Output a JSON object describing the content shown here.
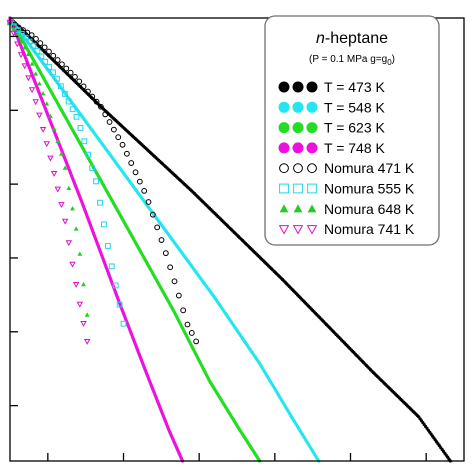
{
  "chart_data": {
    "type": "scatter",
    "title": "n-heptane",
    "title_prefix": "n",
    "title_rest": "-heptane",
    "subtitle_main": "(P = 0.1 MPa g=g",
    "subtitle_sub": "0",
    "subtitle_close": ")",
    "xlabel": "",
    "ylabel": "",
    "x_tick_count": 6,
    "y_tick_count": 6,
    "legend_position": "top-right",
    "series": [
      {
        "name": "T = 473 K",
        "color": "#000000",
        "marker": "filled-circle",
        "x": [
          0.0,
          0.2,
          0.4,
          0.6,
          0.8,
          0.9,
          0.97
        ],
        "y": [
          1.0,
          0.8,
          0.61,
          0.41,
          0.2,
          0.1,
          0.0
        ]
      },
      {
        "name": "T = 548 K",
        "color": "#22e6f0",
        "marker": "filled-circle",
        "x": [
          0.0,
          0.15,
          0.3,
          0.45,
          0.55,
          0.62,
          0.68
        ],
        "y": [
          1.0,
          0.79,
          0.58,
          0.37,
          0.22,
          0.1,
          0.0
        ]
      },
      {
        "name": "T = 623 K",
        "color": "#22dd22",
        "marker": "filled-circle",
        "x": [
          0.0,
          0.12,
          0.24,
          0.36,
          0.44,
          0.5,
          0.55
        ],
        "y": [
          1.0,
          0.78,
          0.56,
          0.34,
          0.18,
          0.08,
          0.0
        ]
      },
      {
        "name": "T = 748 K",
        "color": "#ee11dd",
        "marker": "filled-circle",
        "x": [
          0.0,
          0.08,
          0.16,
          0.24,
          0.3,
          0.35,
          0.38
        ],
        "y": [
          1.0,
          0.79,
          0.58,
          0.36,
          0.2,
          0.07,
          0.0
        ]
      },
      {
        "name": "Nomura 471 K",
        "color": "#000000",
        "marker": "open-circle",
        "x": [
          0.0,
          0.05,
          0.1,
          0.15,
          0.2,
          0.25,
          0.3,
          0.34,
          0.37,
          0.39,
          0.41
        ],
        "y": [
          0.99,
          0.96,
          0.91,
          0.86,
          0.8,
          0.71,
          0.6,
          0.48,
          0.38,
          0.31,
          0.27
        ]
      },
      {
        "name": "Nomura 555 K",
        "color": "#22d4ee",
        "marker": "open-square",
        "x": [
          0.0,
          0.05,
          0.1,
          0.15,
          0.19,
          0.22,
          0.25
        ],
        "y": [
          0.99,
          0.94,
          0.87,
          0.77,
          0.63,
          0.46,
          0.31
        ]
      },
      {
        "name": "Nomura 648 K",
        "color": "#22cc22",
        "marker": "filled-triangle",
        "x": [
          0.0,
          0.04,
          0.08,
          0.12,
          0.15,
          0.17
        ],
        "y": [
          0.99,
          0.92,
          0.81,
          0.67,
          0.5,
          0.33
        ]
      },
      {
        "name": "Nomura 741 K",
        "color": "#dd11cc",
        "marker": "open-triangle-down",
        "x": [
          0.0,
          0.03,
          0.06,
          0.09,
          0.12,
          0.14,
          0.16,
          0.17
        ],
        "y": [
          0.99,
          0.9,
          0.8,
          0.68,
          0.55,
          0.43,
          0.32,
          0.27
        ]
      }
    ]
  }
}
